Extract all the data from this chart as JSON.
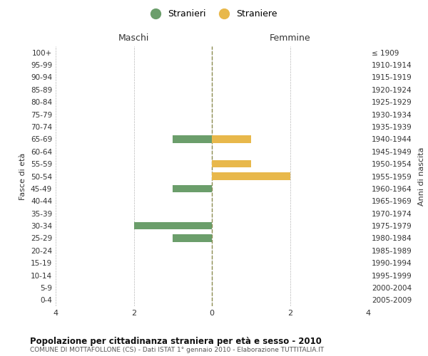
{
  "age_groups": [
    "100+",
    "95-99",
    "90-94",
    "85-89",
    "80-84",
    "75-79",
    "70-74",
    "65-69",
    "60-64",
    "55-59",
    "50-54",
    "45-49",
    "40-44",
    "35-39",
    "30-34",
    "25-29",
    "20-24",
    "15-19",
    "10-14",
    "5-9",
    "0-4"
  ],
  "birth_years": [
    "≤ 1909",
    "1910-1914",
    "1915-1919",
    "1920-1924",
    "1925-1929",
    "1930-1934",
    "1935-1939",
    "1940-1944",
    "1945-1949",
    "1950-1954",
    "1955-1959",
    "1960-1964",
    "1965-1969",
    "1970-1974",
    "1975-1979",
    "1980-1984",
    "1985-1989",
    "1990-1994",
    "1995-1999",
    "2000-2004",
    "2005-2009"
  ],
  "maschi": [
    0,
    0,
    0,
    0,
    0,
    0,
    0,
    -1,
    0,
    0,
    0,
    -1,
    0,
    0,
    -2,
    -1,
    0,
    0,
    0,
    0,
    0
  ],
  "femmine": [
    0,
    0,
    0,
    0,
    0,
    0,
    0,
    1,
    0,
    1,
    2,
    0,
    0,
    0,
    0,
    0,
    0,
    0,
    0,
    0,
    0
  ],
  "maschi_color": "#6b9e6b",
  "femmine_color": "#e8b84b",
  "bar_height": 0.6,
  "xlim": [
    -4,
    4
  ],
  "xticks": [
    -4,
    -2,
    0,
    2,
    4
  ],
  "xticklabels": [
    "4",
    "2",
    "0",
    "2",
    "4"
  ],
  "title": "Popolazione per cittadinanza straniera per età e sesso - 2010",
  "subtitle": "COMUNE DI MOTTAFOLLONE (CS) - Dati ISTAT 1° gennaio 2010 - Elaborazione TUTTITALIA.IT",
  "ylabel_left": "Fasce di età",
  "ylabel_right": "Anni di nascita",
  "label_maschi_header": "Maschi",
  "label_femmine_header": "Femmine",
  "legend_stranieri": "Stranieri",
  "legend_straniere": "Straniere",
  "grid_color": "#cccccc",
  "background_color": "#ffffff",
  "center_line_color": "#8b8b4e"
}
